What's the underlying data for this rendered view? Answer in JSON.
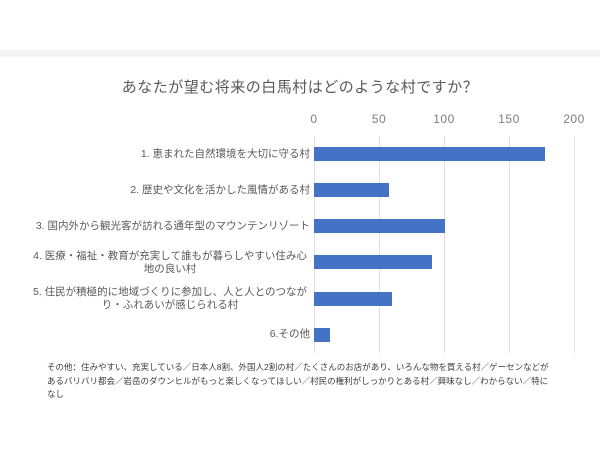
{
  "page": {
    "background_color": "#ffffff",
    "separator_color": "#f4f4f4"
  },
  "chart_data": {
    "type": "bar",
    "orientation": "horizontal",
    "title": "あなたが望む将来の白馬村はどのような村ですか？",
    "categories": [
      "1. 恵まれた自然環境を大切に守る村",
      "2. 歴史や文化を活かした風情がある村",
      "3. 国内外から観光客が訪れる通年型のマウンテンリゾート",
      "4. 医療・福祉・教育が充実して誰もが暮らしやすい住み心地の良い村",
      "5. 住民が積極的に地域づくりに参加し、人と人とのつながり・ふれあいが感じられる村",
      "6.その他"
    ],
    "values": [
      178,
      58,
      101,
      91,
      60,
      12
    ],
    "xlim": [
      0,
      200
    ],
    "xticks": [
      0,
      50,
      100,
      150,
      200
    ],
    "grid": true,
    "legend": false,
    "bar_color": "#4472c4",
    "gridline_color": "#e2e2e2",
    "title_color": "#595959",
    "tick_color": "#7f7f7f",
    "label_color": "#595959"
  },
  "footnote": "その他：住みやすい、充実している／日本人8割、外国人2割の村／たくさんのお店があり、いろんな物を買える村／ゲーセンなどがあるバリバリ都会／岩岳のダウンヒルがもっと楽しくなってほしい／村民の権利がしっかりとある村／興味なし／わからない／特になし"
}
